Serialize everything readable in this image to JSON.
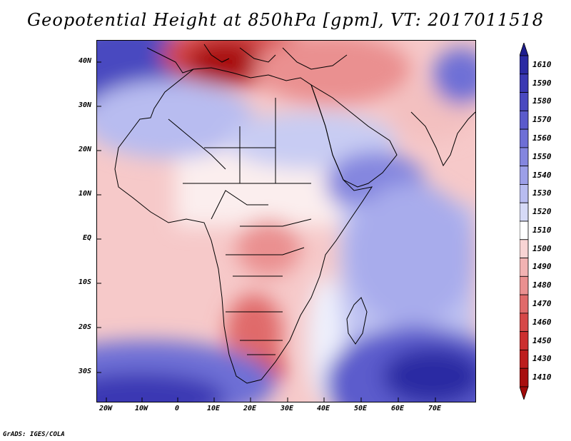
{
  "title": "Geopotential Height at 850hPa [gpm], VT: 2017011518",
  "footer": "GrADS: IGES/COLA",
  "map": {
    "lat_ticks": [
      "40N",
      "30N",
      "20N",
      "10N",
      "EQ",
      "10S",
      "20S",
      "30S"
    ],
    "lon_ticks": [
      "20W",
      "10W",
      "0",
      "10E",
      "20E",
      "30E",
      "40E",
      "50E",
      "60E",
      "70E"
    ],
    "lat_range": [
      -37,
      45
    ],
    "lon_range": [
      -23,
      80
    ]
  },
  "colorbar": {
    "labels": [
      "1610",
      "1590",
      "1580",
      "1570",
      "1560",
      "1550",
      "1540",
      "1530",
      "1520",
      "1510",
      "1500",
      "1490",
      "1480",
      "1470",
      "1460",
      "1450",
      "1430",
      "1410"
    ],
    "colors": [
      "#2b2aa3",
      "#3b39b3",
      "#4a49c0",
      "#5b5bcc",
      "#6e6fd6",
      "#8486df",
      "#9c9fe8",
      "#b8bcf0",
      "#d6daf7",
      "#ffffff",
      "#f8d4d4",
      "#f2b3b3",
      "#ea9090",
      "#e06a6a",
      "#d64848",
      "#cc2f2f",
      "#bd1d1d",
      "#a80f0f"
    ],
    "top_arrow_color": "#1e1d8f",
    "bottom_arrow_color": "#a00a0a"
  }
}
